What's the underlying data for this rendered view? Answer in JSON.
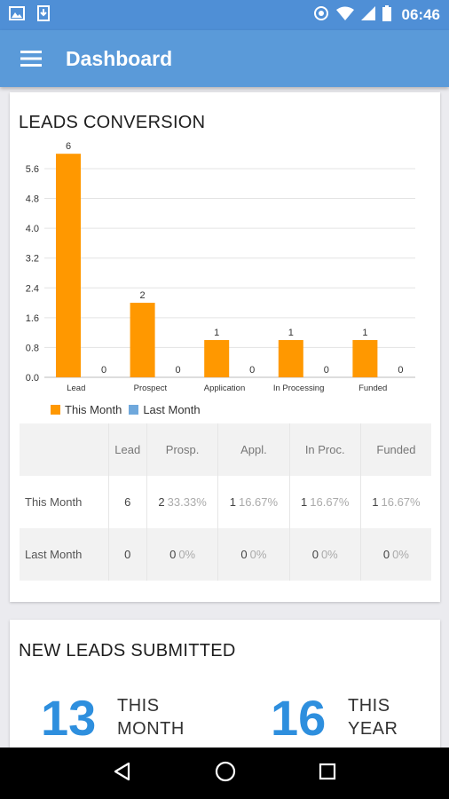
{
  "status_bar": {
    "time": "06:46"
  },
  "app_bar": {
    "title": "Dashboard"
  },
  "leads_conversion": {
    "title": "LEADS CONVERSION",
    "legend": {
      "this_month": "This Month",
      "last_month": "Last Month"
    },
    "colors": {
      "this_month": "#ff9800",
      "last_month": "#6fa8dc"
    },
    "table": {
      "headers": [
        "",
        "Lead",
        "Prosp.",
        "Appl.",
        "In Proc.",
        "Funded"
      ],
      "rows": [
        {
          "label": "This Month",
          "cells": [
            {
              "num": "6",
              "pct": ""
            },
            {
              "num": "2",
              "pct": "33.33%"
            },
            {
              "num": "1",
              "pct": "16.67%"
            },
            {
              "num": "1",
              "pct": "16.67%"
            },
            {
              "num": "1",
              "pct": "16.67%"
            }
          ]
        },
        {
          "label": "Last Month",
          "cells": [
            {
              "num": "0",
              "pct": ""
            },
            {
              "num": "0",
              "pct": "0%"
            },
            {
              "num": "0",
              "pct": "0%"
            },
            {
              "num": "0",
              "pct": "0%"
            },
            {
              "num": "0",
              "pct": "0%"
            }
          ]
        }
      ]
    }
  },
  "chart_data": {
    "type": "bar",
    "categories": [
      "Lead",
      "Prospect",
      "Application",
      "In Processing",
      "Funded"
    ],
    "series": [
      {
        "name": "This Month",
        "values": [
          6,
          2,
          1,
          1,
          1
        ]
      },
      {
        "name": "Last Month",
        "values": [
          0,
          0,
          0,
          0,
          0
        ]
      }
    ],
    "y_ticks": [
      "0.0",
      "0.8",
      "1.6",
      "2.4",
      "3.2",
      "4.0",
      "4.8",
      "5.6"
    ],
    "ylim": [
      0,
      6.1
    ],
    "grid": true,
    "legend_position": "bottom-left"
  },
  "new_leads": {
    "title": "NEW LEADS SUBMITTED",
    "this_month_count": "13",
    "this_month_label_1": "THIS",
    "this_month_label_2": "MONTH",
    "this_year_count": "16",
    "this_year_label_1": "THIS",
    "this_year_label_2": "YEAR"
  }
}
